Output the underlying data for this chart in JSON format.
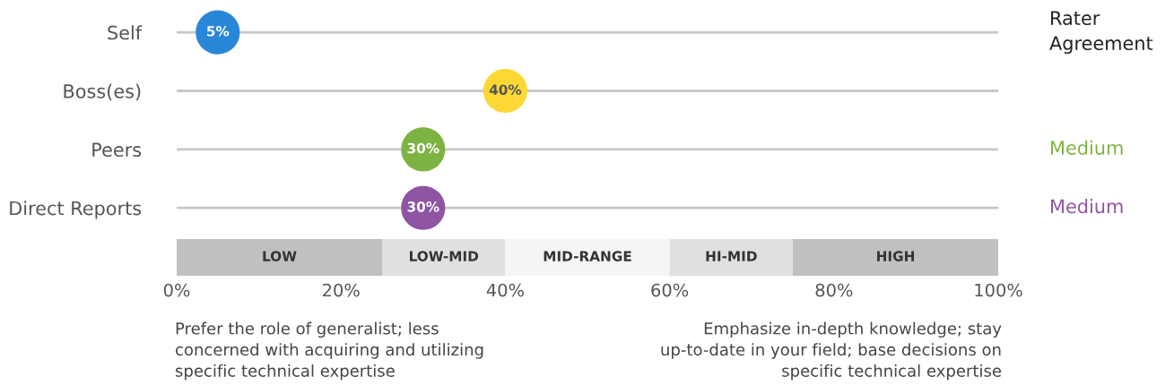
{
  "chart_data": {
    "type": "scatter",
    "orientation": "horizontal",
    "categories": [
      "Self",
      "Boss(es)",
      "Peers",
      "Direct Reports"
    ],
    "values": [
      5,
      40,
      30,
      30
    ],
    "colors": [
      "#2a86d8",
      "#fdd835",
      "#7cb342",
      "#8e55a3"
    ],
    "value_labels": [
      "5%",
      "40%",
      "30%",
      "30%"
    ],
    "xlim": [
      0,
      100
    ],
    "xticks": [
      {
        "value": 0,
        "label": "0%"
      },
      {
        "value": 20,
        "label": "20%"
      },
      {
        "value": 40,
        "label": "40%"
      },
      {
        "value": 60,
        "label": "60%"
      },
      {
        "value": 80,
        "label": "80%"
      },
      {
        "value": 100,
        "label": "100%"
      }
    ],
    "grid": "y",
    "marker": "circle",
    "bands": [
      {
        "axis": "x",
        "from": 0,
        "to": 25,
        "label": "LOW",
        "color": "#c0c0c0"
      },
      {
        "axis": "x",
        "from": 25,
        "to": 40,
        "label": "LOW-MID",
        "color": "#e0e0e0"
      },
      {
        "axis": "x",
        "from": 40,
        "to": 60,
        "label": "MID-RANGE",
        "color": "#f5f5f5"
      },
      {
        "axis": "x",
        "from": 60,
        "to": 75,
        "label": "HI-MID",
        "color": "#e0e0e0"
      },
      {
        "axis": "x",
        "from": 75,
        "to": 100,
        "label": "HIGH",
        "color": "#c0c0c0"
      }
    ],
    "annotations": [
      "Rater\nAgreement",
      "Medium",
      "Medium",
      "Prefer the role of generalist; less\nconcerned with acquiring and utilizing\nspecific technical expertise",
      "Emphasize in-depth knowledge; stay\nup-to-date in your field; base decisions on\nspecific technical expertise"
    ]
  }
}
